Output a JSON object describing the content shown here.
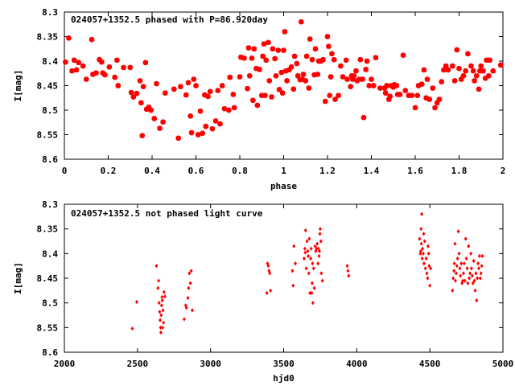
{
  "chart_data": [
    {
      "type": "scatter",
      "title": "024057+1352.5 phased with P=86.920day",
      "xlabel": "phase",
      "ylabel": "I[mag]",
      "xlim": [
        0,
        2
      ],
      "ylim": [
        8.3,
        8.6
      ],
      "y_inverted": true,
      "x_ticks": [
        0,
        0.2,
        0.4,
        0.6,
        0.8,
        1,
        1.2,
        1.4,
        1.6,
        1.8,
        2
      ],
      "x_tick_labels": [
        "0",
        "0.2",
        "0.4",
        "0.6",
        "0.8",
        "1",
        "1.2",
        "1.4",
        "1.6",
        "1.8",
        "2"
      ],
      "y_ticks": [
        8.3,
        8.35,
        8.4,
        8.45,
        8.5,
        8.55,
        8.6
      ],
      "y_tick_labels": [
        "8.3",
        "8.35",
        "8.4",
        "8.45",
        "8.5",
        "8.55",
        "8.6"
      ],
      "marker_color": "#ff0000",
      "marker_size": "large",
      "points": [
        [
          0.005,
          8.402
        ],
        [
          0.02,
          8.353
        ],
        [
          0.035,
          8.42
        ],
        [
          0.045,
          8.398
        ],
        [
          0.055,
          8.418
        ],
        [
          0.065,
          8.403
        ],
        [
          0.085,
          8.41
        ],
        [
          0.1,
          8.437
        ],
        [
          0.125,
          8.356
        ],
        [
          0.13,
          8.427
        ],
        [
          0.145,
          8.424
        ],
        [
          0.16,
          8.397
        ],
        [
          0.17,
          8.402
        ],
        [
          0.175,
          8.424
        ],
        [
          0.185,
          8.428
        ],
        [
          0.205,
          8.412
        ],
        [
          0.23,
          8.433
        ],
        [
          0.24,
          8.398
        ],
        [
          0.245,
          8.45
        ],
        [
          0.27,
          8.413
        ],
        [
          0.3,
          8.413
        ],
        [
          0.305,
          8.464
        ],
        [
          0.315,
          8.473
        ],
        [
          0.33,
          8.466
        ],
        [
          0.345,
          8.44
        ],
        [
          0.35,
          8.485
        ],
        [
          0.355,
          8.552
        ],
        [
          0.36,
          8.452
        ],
        [
          0.37,
          8.403
        ],
        [
          0.375,
          8.498
        ],
        [
          0.385,
          8.494
        ],
        [
          0.395,
          8.5
        ],
        [
          0.41,
          8.517
        ],
        [
          0.42,
          8.446
        ],
        [
          0.435,
          8.537
        ],
        [
          0.45,
          8.524
        ],
        [
          0.46,
          8.465
        ],
        [
          0.5,
          8.457
        ],
        [
          0.52,
          8.557
        ],
        [
          0.53,
          8.452
        ],
        [
          0.555,
          8.469
        ],
        [
          0.565,
          8.444
        ],
        [
          0.575,
          8.512
        ],
        [
          0.58,
          8.546
        ],
        [
          0.59,
          8.437
        ],
        [
          0.6,
          8.45
        ],
        [
          0.61,
          8.55
        ],
        [
          0.62,
          8.502
        ],
        [
          0.63,
          8.547
        ],
        [
          0.64,
          8.469
        ],
        [
          0.645,
          8.533
        ],
        [
          0.655,
          8.472
        ],
        [
          0.665,
          8.462
        ],
        [
          0.675,
          8.538
        ],
        [
          0.69,
          8.522
        ],
        [
          0.7,
          8.46
        ],
        [
          0.71,
          8.528
        ],
        [
          0.72,
          8.45
        ],
        [
          0.73,
          8.497
        ],
        [
          0.75,
          8.5
        ],
        [
          0.755,
          8.433
        ],
        [
          0.77,
          8.468
        ],
        [
          0.775,
          8.495
        ],
        [
          0.8,
          8.432
        ],
        [
          0.805,
          8.392
        ],
        [
          0.82,
          8.394
        ],
        [
          0.835,
          8.456
        ],
        [
          0.84,
          8.373
        ],
        [
          0.845,
          8.43
        ],
        [
          0.855,
          8.394
        ],
        [
          0.86,
          8.48
        ],
        [
          0.865,
          8.375
        ],
        [
          0.875,
          8.415
        ],
        [
          0.88,
          8.49
        ],
        [
          0.89,
          8.417
        ],
        [
          0.9,
          8.47
        ],
        [
          0.905,
          8.39
        ],
        [
          0.91,
          8.365
        ],
        [
          0.915,
          8.47
        ],
        [
          0.92,
          8.398
        ],
        [
          0.93,
          8.362
        ],
        [
          0.935,
          8.44
        ],
        [
          0.945,
          8.473
        ],
        [
          0.95,
          8.375
        ],
        [
          0.96,
          8.395
        ],
        [
          0.965,
          8.43
        ],
        [
          0.975,
          8.378
        ],
        [
          0.98,
          8.458
        ],
        [
          0.99,
          8.423
        ],
        [
          0.995,
          8.465
        ],
        [
          1.0,
          8.378
        ],
        [
          1.005,
          8.34
        ],
        [
          1.01,
          8.42
        ],
        [
          1.015,
          8.44
        ],
        [
          1.025,
          8.418
        ],
        [
          1.035,
          8.412
        ],
        [
          1.045,
          8.457
        ],
        [
          1.05,
          8.39
        ],
        [
          1.06,
          8.405
        ],
        [
          1.065,
          8.43
        ],
        [
          1.075,
          8.438
        ],
        [
          1.08,
          8.32
        ],
        [
          1.085,
          8.437
        ],
        [
          1.09,
          8.427
        ],
        [
          1.1,
          8.44
        ],
        [
          1.105,
          8.39
        ],
        [
          1.115,
          8.455
        ],
        [
          1.12,
          8.355
        ],
        [
          1.13,
          8.397
        ],
        [
          1.14,
          8.428
        ],
        [
          1.145,
          8.375
        ],
        [
          1.155,
          8.427
        ],
        [
          1.16,
          8.4
        ],
        [
          1.17,
          8.4
        ],
        [
          1.18,
          8.397
        ],
        [
          1.19,
          8.482
        ],
        [
          1.2,
          8.35
        ],
        [
          1.205,
          8.37
        ],
        [
          1.21,
          8.47
        ],
        [
          1.215,
          8.432
        ],
        [
          1.22,
          8.385
        ],
        [
          1.23,
          8.397
        ],
        [
          1.235,
          8.478
        ],
        [
          1.25,
          8.47
        ],
        [
          1.26,
          8.41
        ],
        [
          1.27,
          8.432
        ],
        [
          1.285,
          8.398
        ],
        [
          1.29,
          8.437
        ],
        [
          1.305,
          8.452
        ],
        [
          1.31,
          8.43
        ],
        [
          1.315,
          8.437
        ],
        [
          1.32,
          8.43
        ],
        [
          1.33,
          8.42
        ],
        [
          1.335,
          8.44
        ],
        [
          1.345,
          8.437
        ],
        [
          1.35,
          8.397
        ],
        [
          1.36,
          8.437
        ],
        [
          1.365,
          8.515
        ],
        [
          1.375,
          8.417
        ],
        [
          1.38,
          8.4
        ],
        [
          1.39,
          8.45
        ],
        [
          1.4,
          8.437
        ],
        [
          1.41,
          8.45
        ],
        [
          1.42,
          8.393
        ],
        [
          1.44,
          8.455
        ],
        [
          1.46,
          8.455
        ],
        [
          1.465,
          8.465
        ],
        [
          1.47,
          8.45
        ],
        [
          1.48,
          8.478
        ],
        [
          1.485,
          8.472
        ],
        [
          1.49,
          8.45
        ],
        [
          1.5,
          8.453
        ],
        [
          1.505,
          8.448
        ],
        [
          1.515,
          8.45
        ],
        [
          1.52,
          8.468
        ],
        [
          1.53,
          8.468
        ],
        [
          1.545,
          8.388
        ],
        [
          1.555,
          8.46
        ],
        [
          1.57,
          8.47
        ],
        [
          1.585,
          8.47
        ],
        [
          1.6,
          8.495
        ],
        [
          1.61,
          8.47
        ],
        [
          1.615,
          8.45
        ],
        [
          1.63,
          8.447
        ],
        [
          1.64,
          8.418
        ],
        [
          1.65,
          8.475
        ],
        [
          1.655,
          8.437
        ],
        [
          1.665,
          8.478
        ],
        [
          1.68,
          8.455
        ],
        [
          1.69,
          8.495
        ],
        [
          1.7,
          8.485
        ],
        [
          1.71,
          8.478
        ],
        [
          1.72,
          8.442
        ],
        [
          1.73,
          8.418
        ],
        [
          1.74,
          8.41
        ],
        [
          1.75,
          8.418
        ],
        [
          1.77,
          8.41
        ],
        [
          1.78,
          8.44
        ],
        [
          1.79,
          8.377
        ],
        [
          1.8,
          8.415
        ],
        [
          1.81,
          8.437
        ],
        [
          1.82,
          8.43
        ],
        [
          1.83,
          8.42
        ],
        [
          1.84,
          8.385
        ],
        [
          1.855,
          8.41
        ],
        [
          1.865,
          8.42
        ],
        [
          1.87,
          8.44
        ],
        [
          1.88,
          8.43
        ],
        [
          1.89,
          8.457
        ],
        [
          1.895,
          8.42
        ],
        [
          1.9,
          8.41
        ],
        [
          1.91,
          8.42
        ],
        [
          1.92,
          8.435
        ],
        [
          1.925,
          8.398
        ],
        [
          1.935,
          8.43
        ],
        [
          1.94,
          8.398
        ],
        [
          1.955,
          8.42
        ],
        [
          1.99,
          8.408
        ]
      ]
    },
    {
      "type": "scatter",
      "title": "024057+1352.5 not phased light curve",
      "xlabel": "hjd0",
      "ylabel": "I[mag]",
      "xlim": [
        2000,
        5000
      ],
      "ylim": [
        8.3,
        8.6
      ],
      "y_inverted": true,
      "x_ticks": [
        2000,
        2500,
        3000,
        3500,
        4000,
        4500,
        5000
      ],
      "x_tick_labels": [
        "2000",
        "2500",
        "3000",
        "3500",
        "4000",
        "4500",
        "5000"
      ],
      "y_ticks": [
        8.3,
        8.35,
        8.4,
        8.45,
        8.5,
        8.55,
        8.6
      ],
      "y_tick_labels": [
        "8.3",
        "8.35",
        "8.4",
        "8.45",
        "8.5",
        "8.55",
        "8.6"
      ],
      "marker_color": "#ff0000",
      "marker_size": "small",
      "points": [
        [
          2465,
          8.552
        ],
        [
          2495,
          8.498
        ],
        [
          2630,
          8.425
        ],
        [
          2640,
          8.47
        ],
        [
          2645,
          8.455
        ],
        [
          2648,
          8.5
        ],
        [
          2652,
          8.518
        ],
        [
          2655,
          8.535
        ],
        [
          2658,
          8.55
        ],
        [
          2660,
          8.56
        ],
        [
          2662,
          8.525
        ],
        [
          2665,
          8.505
        ],
        [
          2668,
          8.488
        ],
        [
          2670,
          8.495
        ],
        [
          2672,
          8.55
        ],
        [
          2675,
          8.515
        ],
        [
          2678,
          8.54
        ],
        [
          2682,
          8.478
        ],
        [
          2688,
          8.487
        ],
        [
          2820,
          8.533
        ],
        [
          2830,
          8.505
        ],
        [
          2835,
          8.51
        ],
        [
          2845,
          8.49
        ],
        [
          2850,
          8.47
        ],
        [
          2855,
          8.44
        ],
        [
          2862,
          8.46
        ],
        [
          2868,
          8.435
        ],
        [
          2875,
          8.515
        ],
        [
          3385,
          8.48
        ],
        [
          3390,
          8.42
        ],
        [
          3395,
          8.425
        ],
        [
          3400,
          8.435
        ],
        [
          3405,
          8.44
        ],
        [
          3410,
          8.475
        ],
        [
          3560,
          8.435
        ],
        [
          3565,
          8.465
        ],
        [
          3570,
          8.385
        ],
        [
          3580,
          8.42
        ],
        [
          3640,
          8.41
        ],
        [
          3645,
          8.39
        ],
        [
          3648,
          8.398
        ],
        [
          3650,
          8.353
        ],
        [
          3655,
          8.43
        ],
        [
          3660,
          8.375
        ],
        [
          3665,
          8.395
        ],
        [
          3668,
          8.405
        ],
        [
          3672,
          8.44
        ],
        [
          3675,
          8.37
        ],
        [
          3680,
          8.48
        ],
        [
          3685,
          8.41
        ],
        [
          3688,
          8.39
        ],
        [
          3692,
          8.48
        ],
        [
          3695,
          8.46
        ],
        [
          3698,
          8.42
        ],
        [
          3700,
          8.5
        ],
        [
          3705,
          8.43
        ],
        [
          3710,
          8.47
        ],
        [
          3715,
          8.385
        ],
        [
          3720,
          8.395
        ],
        [
          3725,
          8.39
        ],
        [
          3730,
          8.38
        ],
        [
          3735,
          8.42
        ],
        [
          3738,
          8.39
        ],
        [
          3742,
          8.405
        ],
        [
          3745,
          8.395
        ],
        [
          3748,
          8.36
        ],
        [
          3750,
          8.35
        ],
        [
          3755,
          8.375
        ],
        [
          3758,
          8.44
        ],
        [
          3765,
          8.455
        ],
        [
          3935,
          8.425
        ],
        [
          3940,
          8.435
        ],
        [
          3945,
          8.445
        ],
        [
          4430,
          8.37
        ],
        [
          4435,
          8.4
        ],
        [
          4438,
          8.395
        ],
        [
          4440,
          8.35
        ],
        [
          4442,
          8.38
        ],
        [
          4445,
          8.32
        ],
        [
          4448,
          8.41
        ],
        [
          4450,
          8.39
        ],
        [
          4455,
          8.4
        ],
        [
          4458,
          8.36
        ],
        [
          4460,
          8.42
        ],
        [
          4465,
          8.375
        ],
        [
          4470,
          8.43
        ],
        [
          4475,
          8.41
        ],
        [
          4480,
          8.44
        ],
        [
          4485,
          8.45
        ],
        [
          4488,
          8.385
        ],
        [
          4492,
          8.4
        ],
        [
          4495,
          8.425
        ],
        [
          4500,
          8.465
        ],
        [
          4505,
          8.43
        ],
        [
          4655,
          8.475
        ],
        [
          4660,
          8.45
        ],
        [
          4665,
          8.435
        ],
        [
          4668,
          8.42
        ],
        [
          4672,
          8.38
        ],
        [
          4675,
          8.455
        ],
        [
          4680,
          8.44
        ],
        [
          4685,
          8.425
        ],
        [
          4690,
          8.41
        ],
        [
          4695,
          8.355
        ],
        [
          4700,
          8.4
        ],
        [
          4705,
          8.43
        ],
        [
          4710,
          8.445
        ],
        [
          4715,
          8.42
        ],
        [
          4720,
          8.46
        ],
        [
          4725,
          8.455
        ],
        [
          4730,
          8.44
        ],
        [
          4735,
          8.42
        ],
        [
          4740,
          8.455
        ],
        [
          4745,
          8.37
        ],
        [
          4750,
          8.41
        ],
        [
          4755,
          8.43
        ],
        [
          4760,
          8.46
        ],
        [
          4765,
          8.385
        ],
        [
          4770,
          8.45
        ],
        [
          4775,
          8.44
        ],
        [
          4780,
          8.4
        ],
        [
          4785,
          8.43
        ],
        [
          4790,
          8.445
        ],
        [
          4795,
          8.46
        ],
        [
          4800,
          8.415
        ],
        [
          4805,
          8.455
        ],
        [
          4810,
          8.475
        ],
        [
          4815,
          8.44
        ],
        [
          4820,
          8.495
        ],
        [
          4825,
          8.45
        ],
        [
          4830,
          8.42
        ],
        [
          4835,
          8.43
        ],
        [
          4840,
          8.405
        ],
        [
          4845,
          8.45
        ],
        [
          4850,
          8.44
        ],
        [
          4855,
          8.425
        ],
        [
          4860,
          8.405
        ]
      ]
    }
  ]
}
